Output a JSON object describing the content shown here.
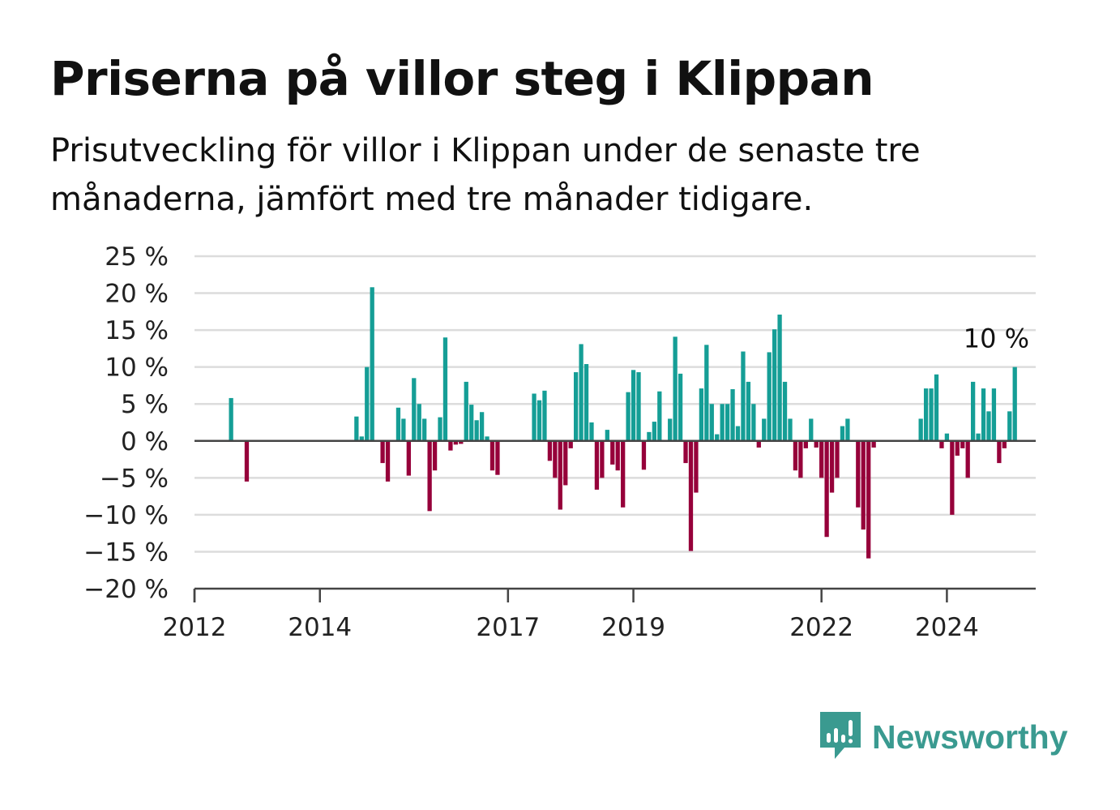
{
  "header": {
    "title": "Priserna på villor steg i Klippan",
    "subtitle": "Prisutveckling för villor i Klippan under de senaste tre månaderna, jämfört med tre månader tidigare."
  },
  "brand": {
    "name": "Newsworthy",
    "icon": "newsworthy-logo-icon",
    "color": "#3a9a90"
  },
  "colors": {
    "positive": "#159e96",
    "negative": "#96003a",
    "grid": "#dcdcdc",
    "axis": "#444444"
  },
  "chart_data": {
    "type": "bar",
    "ylim": [
      -20,
      25
    ],
    "yticks": [
      25,
      20,
      15,
      10,
      5,
      0,
      -5,
      -10,
      -15,
      -20
    ],
    "ytick_labels": [
      "25 %",
      "20 %",
      "15 %",
      "10 %",
      "5 %",
      "0 %",
      "−5 %",
      "−10 %",
      "−15 %",
      "−20 %"
    ],
    "xlim": [
      "2012-01",
      "2025-06"
    ],
    "xtick_labels": [
      {
        "date": "2012-01",
        "label": "2012"
      },
      {
        "date": "2014-01",
        "label": "2014"
      },
      {
        "date": "2017-01",
        "label": "2017"
      },
      {
        "date": "2019-01",
        "label": "2019"
      },
      {
        "date": "2022-01",
        "label": "2022"
      },
      {
        "date": "2024-01",
        "label": "2024"
      }
    ],
    "grid": true,
    "last_value_label": "10 %",
    "series": [
      {
        "points": [
          [
            "2012-08",
            5.8
          ],
          [
            "2012-11",
            -5.5
          ],
          [
            "2014-08",
            3.3
          ],
          [
            "2014-09",
            0.6
          ],
          [
            "2014-10",
            10.0
          ],
          [
            "2014-11",
            20.8
          ],
          [
            "2014-12",
            0
          ],
          [
            "2015-01",
            -3.0
          ],
          [
            "2015-02",
            -5.5
          ],
          [
            "2015-03",
            0
          ],
          [
            "2015-04",
            4.5
          ],
          [
            "2015-05",
            3.0
          ],
          [
            "2015-06",
            -4.7
          ],
          [
            "2015-07",
            8.5
          ],
          [
            "2015-08",
            5.0
          ],
          [
            "2015-09",
            3.0
          ],
          [
            "2015-10",
            -9.5
          ],
          [
            "2015-11",
            -4.0
          ],
          [
            "2015-12",
            3.2
          ],
          [
            "2016-01",
            14.0
          ],
          [
            "2016-02",
            -1.3
          ],
          [
            "2016-03",
            -0.5
          ],
          [
            "2016-04",
            -0.4
          ],
          [
            "2016-05",
            8.0
          ],
          [
            "2016-06",
            4.9
          ],
          [
            "2016-07",
            2.8
          ],
          [
            "2016-08",
            3.9
          ],
          [
            "2016-09",
            0.6
          ],
          [
            "2016-10",
            -4.0
          ],
          [
            "2016-11",
            -4.6
          ],
          [
            "2017-06",
            6.4
          ],
          [
            "2017-07",
            5.5
          ],
          [
            "2017-08",
            6.8
          ],
          [
            "2017-09",
            -2.7
          ],
          [
            "2017-10",
            -5.0
          ],
          [
            "2017-11",
            -9.3
          ],
          [
            "2017-12",
            -6.0
          ],
          [
            "2018-01",
            -1.0
          ],
          [
            "2018-02",
            9.3
          ],
          [
            "2018-03",
            13.1
          ],
          [
            "2018-04",
            10.4
          ],
          [
            "2018-05",
            2.5
          ],
          [
            "2018-06",
            -6.6
          ],
          [
            "2018-07",
            -5.0
          ],
          [
            "2018-08",
            1.5
          ],
          [
            "2018-09",
            -3.2
          ],
          [
            "2018-10",
            -4.0
          ],
          [
            "2018-11",
            -9.0
          ],
          [
            "2018-12",
            6.6
          ],
          [
            "2019-01",
            9.6
          ],
          [
            "2019-02",
            9.3
          ],
          [
            "2019-03",
            -3.9
          ],
          [
            "2019-04",
            1.2
          ],
          [
            "2019-05",
            2.6
          ],
          [
            "2019-06",
            6.7
          ],
          [
            "2019-07",
            0
          ],
          [
            "2019-08",
            3.0
          ],
          [
            "2019-09",
            14.1
          ],
          [
            "2019-10",
            9.1
          ],
          [
            "2019-11",
            -3.0
          ],
          [
            "2019-12",
            -14.9
          ],
          [
            "2020-01",
            -7.0
          ],
          [
            "2020-02",
            7.1
          ],
          [
            "2020-03",
            13.0
          ],
          [
            "2020-04",
            5.0
          ],
          [
            "2020-05",
            0.9
          ],
          [
            "2020-06",
            5.0
          ],
          [
            "2020-07",
            5.0
          ],
          [
            "2020-08",
            7.0
          ],
          [
            "2020-09",
            2.0
          ],
          [
            "2020-10",
            12.1
          ],
          [
            "2020-11",
            8.0
          ],
          [
            "2020-12",
            5.0
          ],
          [
            "2021-01",
            -0.9
          ],
          [
            "2021-02",
            3.0
          ],
          [
            "2021-03",
            12.0
          ],
          [
            "2021-04",
            15.1
          ],
          [
            "2021-05",
            17.1
          ],
          [
            "2021-06",
            8.0
          ],
          [
            "2021-07",
            3.0
          ],
          [
            "2021-08",
            -4.0
          ],
          [
            "2021-09",
            -5.0
          ],
          [
            "2021-10",
            -1.0
          ],
          [
            "2021-11",
            3.0
          ],
          [
            "2021-12",
            -0.9
          ],
          [
            "2022-01",
            -5.0
          ],
          [
            "2022-02",
            -13.0
          ],
          [
            "2022-03",
            -7.0
          ],
          [
            "2022-04",
            -5.0
          ],
          [
            "2022-05",
            2.0
          ],
          [
            "2022-06",
            3.0
          ],
          [
            "2022-07",
            0
          ],
          [
            "2022-08",
            -9.0
          ],
          [
            "2022-09",
            -12.0
          ],
          [
            "2022-10",
            -15.9
          ],
          [
            "2022-11",
            -0.9
          ],
          [
            "2023-08",
            3.0
          ],
          [
            "2023-09",
            7.1
          ],
          [
            "2023-10",
            7.1
          ],
          [
            "2023-11",
            9.0
          ],
          [
            "2023-12",
            -1.0
          ],
          [
            "2024-01",
            1.0
          ],
          [
            "2024-02",
            -10.0
          ],
          [
            "2024-03",
            -2.0
          ],
          [
            "2024-04",
            -1.0
          ],
          [
            "2024-05",
            -5.0
          ],
          [
            "2024-06",
            8.0
          ],
          [
            "2024-07",
            1.0
          ],
          [
            "2024-08",
            7.1
          ],
          [
            "2024-09",
            4.0
          ],
          [
            "2024-10",
            7.1
          ],
          [
            "2024-11",
            -3.0
          ],
          [
            "2024-12",
            -1.0
          ],
          [
            "2025-01",
            4.0
          ],
          [
            "2025-02",
            10.0
          ]
        ]
      }
    ]
  }
}
